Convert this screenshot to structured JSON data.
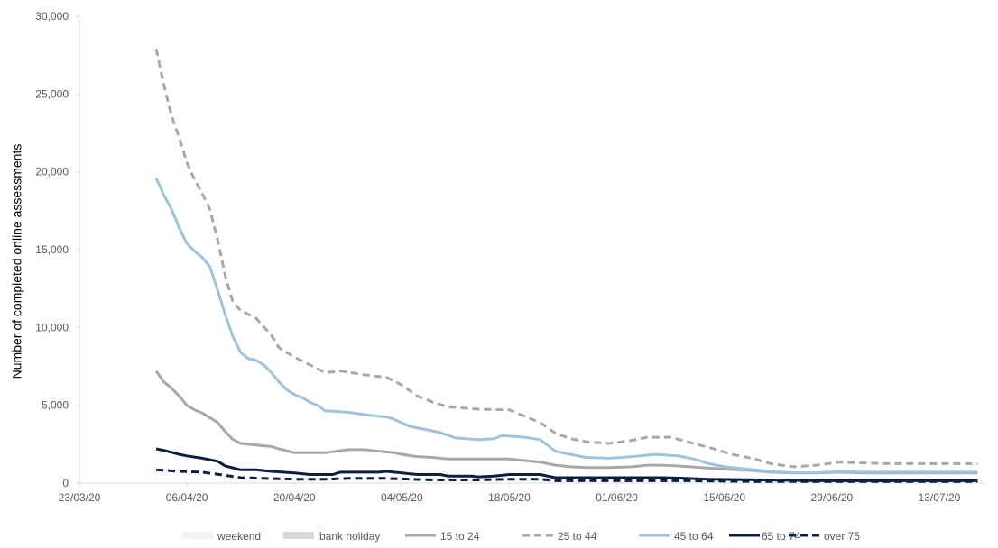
{
  "chart_data": {
    "type": "line",
    "title": "",
    "xlabel": "",
    "ylabel": "Number of completed online assessments",
    "ylim": [
      0,
      30000
    ],
    "y_ticks": [
      0,
      5000,
      10000,
      15000,
      20000,
      25000,
      30000
    ],
    "y_tick_labels": [
      "0",
      "5,000",
      "10,000",
      "15,000",
      "20,000",
      "25,000",
      "30,000"
    ],
    "x_range": [
      "2020-03-23",
      "2020-07-19"
    ],
    "x_tick_labels": [
      "23/03/20",
      "06/04/20",
      "20/04/20",
      "04/05/20",
      "18/05/20",
      "01/06/20",
      "15/06/20",
      "29/06/20",
      "13/07/20"
    ],
    "x_tick_dates": [
      "2020-03-23",
      "2020-04-06",
      "2020-04-20",
      "2020-05-04",
      "2020-05-18",
      "2020-06-01",
      "2020-06-15",
      "2020-06-29",
      "2020-07-13"
    ],
    "grid": false,
    "legend_position": "bottom",
    "series": [
      {
        "name": "15 to 24",
        "color": "#a6a8ab",
        "dash": "solid",
        "points": [
          [
            "2020-04-02",
            7200
          ],
          [
            "2020-04-03",
            6500
          ],
          [
            "2020-04-04",
            6100
          ],
          [
            "2020-04-05",
            5600
          ],
          [
            "2020-04-06",
            5000
          ],
          [
            "2020-04-07",
            4700
          ],
          [
            "2020-04-08",
            4500
          ],
          [
            "2020-04-09",
            4200
          ],
          [
            "2020-04-10",
            3900
          ],
          [
            "2020-04-11",
            3300
          ],
          [
            "2020-04-12",
            2800
          ],
          [
            "2020-04-13",
            2550
          ],
          [
            "2020-04-15",
            2450
          ],
          [
            "2020-04-17",
            2350
          ],
          [
            "2020-04-18",
            2200
          ],
          [
            "2020-04-20",
            1950
          ],
          [
            "2020-04-24",
            1950
          ],
          [
            "2020-04-27",
            2150
          ],
          [
            "2020-04-29",
            2150
          ],
          [
            "2020-05-01",
            2050
          ],
          [
            "2020-05-03",
            1950
          ],
          [
            "2020-05-04",
            1850
          ],
          [
            "2020-05-06",
            1700
          ],
          [
            "2020-05-08",
            1650
          ],
          [
            "2020-05-10",
            1550
          ],
          [
            "2020-05-14",
            1550
          ],
          [
            "2020-05-18",
            1550
          ],
          [
            "2020-05-20",
            1450
          ],
          [
            "2020-05-22",
            1350
          ],
          [
            "2020-05-24",
            1150
          ],
          [
            "2020-05-26",
            1050
          ],
          [
            "2020-05-28",
            1000
          ],
          [
            "2020-05-31",
            1000
          ],
          [
            "2020-06-03",
            1050
          ],
          [
            "2020-06-05",
            1150
          ],
          [
            "2020-06-07",
            1150
          ],
          [
            "2020-06-09",
            1100
          ],
          [
            "2020-06-12",
            1000
          ],
          [
            "2020-06-15",
            900
          ],
          [
            "2020-06-19",
            800
          ],
          [
            "2020-06-21",
            700
          ],
          [
            "2020-06-24",
            650
          ],
          [
            "2020-06-27",
            650
          ],
          [
            "2020-06-30",
            700
          ],
          [
            "2020-07-03",
            650
          ],
          [
            "2020-07-08",
            650
          ],
          [
            "2020-07-12",
            650
          ],
          [
            "2020-07-18",
            650
          ]
        ]
      },
      {
        "name": "25 to 44",
        "color": "#a6a8ab",
        "dash": "dashed",
        "points": [
          [
            "2020-04-02",
            27900
          ],
          [
            "2020-04-03",
            25600
          ],
          [
            "2020-04-04",
            23600
          ],
          [
            "2020-04-05",
            22200
          ],
          [
            "2020-04-06",
            20600
          ],
          [
            "2020-04-07",
            19500
          ],
          [
            "2020-04-08",
            18600
          ],
          [
            "2020-04-09",
            17600
          ],
          [
            "2020-04-10",
            15600
          ],
          [
            "2020-04-11",
            13300
          ],
          [
            "2020-04-12",
            11600
          ],
          [
            "2020-04-13",
            11100
          ],
          [
            "2020-04-15",
            10600
          ],
          [
            "2020-04-17",
            9500
          ],
          [
            "2020-04-18",
            8700
          ],
          [
            "2020-04-20",
            8100
          ],
          [
            "2020-04-22",
            7600
          ],
          [
            "2020-04-24",
            7100
          ],
          [
            "2020-04-26",
            7200
          ],
          [
            "2020-04-28",
            7050
          ],
          [
            "2020-04-30",
            6900
          ],
          [
            "2020-05-02",
            6800
          ],
          [
            "2020-05-04",
            6300
          ],
          [
            "2020-05-06",
            5600
          ],
          [
            "2020-05-08",
            5200
          ],
          [
            "2020-05-10",
            4900
          ],
          [
            "2020-05-14",
            4750
          ],
          [
            "2020-05-18",
            4700
          ],
          [
            "2020-05-20",
            4300
          ],
          [
            "2020-05-22",
            3900
          ],
          [
            "2020-05-24",
            3200
          ],
          [
            "2020-05-26",
            2850
          ],
          [
            "2020-05-28",
            2650
          ],
          [
            "2020-05-31",
            2550
          ],
          [
            "2020-06-03",
            2750
          ],
          [
            "2020-06-05",
            2950
          ],
          [
            "2020-06-08",
            2950
          ],
          [
            "2020-06-11",
            2550
          ],
          [
            "2020-06-14",
            2150
          ],
          [
            "2020-06-16",
            1850
          ],
          [
            "2020-06-19",
            1550
          ],
          [
            "2020-06-21",
            1250
          ],
          [
            "2020-06-24",
            1050
          ],
          [
            "2020-06-27",
            1150
          ],
          [
            "2020-06-30",
            1350
          ],
          [
            "2020-07-03",
            1300
          ],
          [
            "2020-07-06",
            1250
          ],
          [
            "2020-07-10",
            1250
          ],
          [
            "2020-07-18",
            1250
          ]
        ]
      },
      {
        "name": "45 to 64",
        "color": "#9fc3da",
        "dash": "solid",
        "points": [
          [
            "2020-04-02",
            19600
          ],
          [
            "2020-04-03",
            18500
          ],
          [
            "2020-04-04",
            17600
          ],
          [
            "2020-04-05",
            16400
          ],
          [
            "2020-04-06",
            15400
          ],
          [
            "2020-04-07",
            14900
          ],
          [
            "2020-04-08",
            14500
          ],
          [
            "2020-04-09",
            13900
          ],
          [
            "2020-04-10",
            12400
          ],
          [
            "2020-04-11",
            10800
          ],
          [
            "2020-04-12",
            9400
          ],
          [
            "2020-04-13",
            8400
          ],
          [
            "2020-04-14",
            8000
          ],
          [
            "2020-04-15",
            7900
          ],
          [
            "2020-04-16",
            7600
          ],
          [
            "2020-04-17",
            7100
          ],
          [
            "2020-04-18",
            6500
          ],
          [
            "2020-04-19",
            6000
          ],
          [
            "2020-04-20",
            5700
          ],
          [
            "2020-04-21",
            5500
          ],
          [
            "2020-04-22",
            5200
          ],
          [
            "2020-04-23",
            5000
          ],
          [
            "2020-04-24",
            4650
          ],
          [
            "2020-04-27",
            4550
          ],
          [
            "2020-04-30",
            4350
          ],
          [
            "2020-05-02",
            4250
          ],
          [
            "2020-05-03",
            4100
          ],
          [
            "2020-05-05",
            3650
          ],
          [
            "2020-05-07",
            3450
          ],
          [
            "2020-05-09",
            3250
          ],
          [
            "2020-05-11",
            2900
          ],
          [
            "2020-05-14",
            2800
          ],
          [
            "2020-05-16",
            2850
          ],
          [
            "2020-05-17",
            3050
          ],
          [
            "2020-05-20",
            2950
          ],
          [
            "2020-05-22",
            2800
          ],
          [
            "2020-05-24",
            2050
          ],
          [
            "2020-05-26",
            1850
          ],
          [
            "2020-05-28",
            1650
          ],
          [
            "2020-05-31",
            1600
          ],
          [
            "2020-06-03",
            1700
          ],
          [
            "2020-06-06",
            1850
          ],
          [
            "2020-06-09",
            1750
          ],
          [
            "2020-06-11",
            1550
          ],
          [
            "2020-06-13",
            1250
          ],
          [
            "2020-06-15",
            1050
          ],
          [
            "2020-06-18",
            900
          ],
          [
            "2020-06-21",
            750
          ],
          [
            "2020-06-24",
            650
          ],
          [
            "2020-06-27",
            650
          ],
          [
            "2020-06-30",
            750
          ],
          [
            "2020-07-03",
            700
          ],
          [
            "2020-07-08",
            700
          ],
          [
            "2020-07-18",
            700
          ]
        ]
      },
      {
        "name": "65 to 74",
        "color": "#0c1f3f",
        "dash": "solid",
        "points": [
          [
            "2020-04-02",
            2200
          ],
          [
            "2020-04-03",
            2100
          ],
          [
            "2020-04-05",
            1850
          ],
          [
            "2020-04-06",
            1750
          ],
          [
            "2020-04-08",
            1600
          ],
          [
            "2020-04-09",
            1500
          ],
          [
            "2020-04-10",
            1400
          ],
          [
            "2020-04-11",
            1100
          ],
          [
            "2020-04-13",
            850
          ],
          [
            "2020-04-15",
            850
          ],
          [
            "2020-04-17",
            750
          ],
          [
            "2020-04-20",
            650
          ],
          [
            "2020-04-22",
            550
          ],
          [
            "2020-04-25",
            550
          ],
          [
            "2020-04-26",
            700
          ],
          [
            "2020-04-29",
            700
          ],
          [
            "2020-05-01",
            700
          ],
          [
            "2020-05-02",
            750
          ],
          [
            "2020-05-04",
            650
          ],
          [
            "2020-05-06",
            550
          ],
          [
            "2020-05-09",
            550
          ],
          [
            "2020-05-10",
            450
          ],
          [
            "2020-05-13",
            450
          ],
          [
            "2020-05-14",
            400
          ],
          [
            "2020-05-16",
            450
          ],
          [
            "2020-05-18",
            550
          ],
          [
            "2020-05-22",
            550
          ],
          [
            "2020-05-24",
            350
          ],
          [
            "2020-05-31",
            350
          ],
          [
            "2020-06-07",
            350
          ],
          [
            "2020-06-10",
            300
          ],
          [
            "2020-06-13",
            250
          ],
          [
            "2020-06-20",
            200
          ],
          [
            "2020-06-27",
            150
          ],
          [
            "2020-07-04",
            150
          ],
          [
            "2020-07-18",
            150
          ]
        ]
      },
      {
        "name": "over 75",
        "color": "#0c1f3f",
        "dash": "dashed",
        "points": [
          [
            "2020-04-02",
            850
          ],
          [
            "2020-04-05",
            750
          ],
          [
            "2020-04-08",
            700
          ],
          [
            "2020-04-11",
            500
          ],
          [
            "2020-04-13",
            350
          ],
          [
            "2020-04-16",
            300
          ],
          [
            "2020-04-20",
            250
          ],
          [
            "2020-04-24",
            250
          ],
          [
            "2020-04-27",
            300
          ],
          [
            "2020-05-02",
            300
          ],
          [
            "2020-05-05",
            250
          ],
          [
            "2020-05-08",
            200
          ],
          [
            "2020-05-14",
            200
          ],
          [
            "2020-05-18",
            250
          ],
          [
            "2020-05-22",
            250
          ],
          [
            "2020-05-24",
            150
          ],
          [
            "2020-05-31",
            150
          ],
          [
            "2020-06-10",
            150
          ],
          [
            "2020-06-20",
            100
          ],
          [
            "2020-06-30",
            100
          ],
          [
            "2020-07-10",
            100
          ],
          [
            "2020-07-18",
            100
          ]
        ]
      }
    ],
    "legend": [
      {
        "label": "weekend",
        "symbol": "band",
        "color": "#f2f2f2"
      },
      {
        "label": "bank holiday",
        "symbol": "band",
        "color": "#d9d9d9"
      },
      {
        "label": "15 to 24",
        "symbol": "line",
        "color": "#a6a8ab",
        "dash": "solid"
      },
      {
        "label": "25 to 44",
        "symbol": "line",
        "color": "#a6a8ab",
        "dash": "dashed"
      },
      {
        "label": "45 to 64",
        "symbol": "line",
        "color": "#9fc3da",
        "dash": "solid"
      },
      {
        "label": "65 to 74",
        "symbol": "line",
        "color": "#0c1f3f",
        "dash": "solid"
      },
      {
        "label": "over 75",
        "symbol": "line",
        "color": "#0c1f3f",
        "dash": "dashed"
      }
    ]
  }
}
